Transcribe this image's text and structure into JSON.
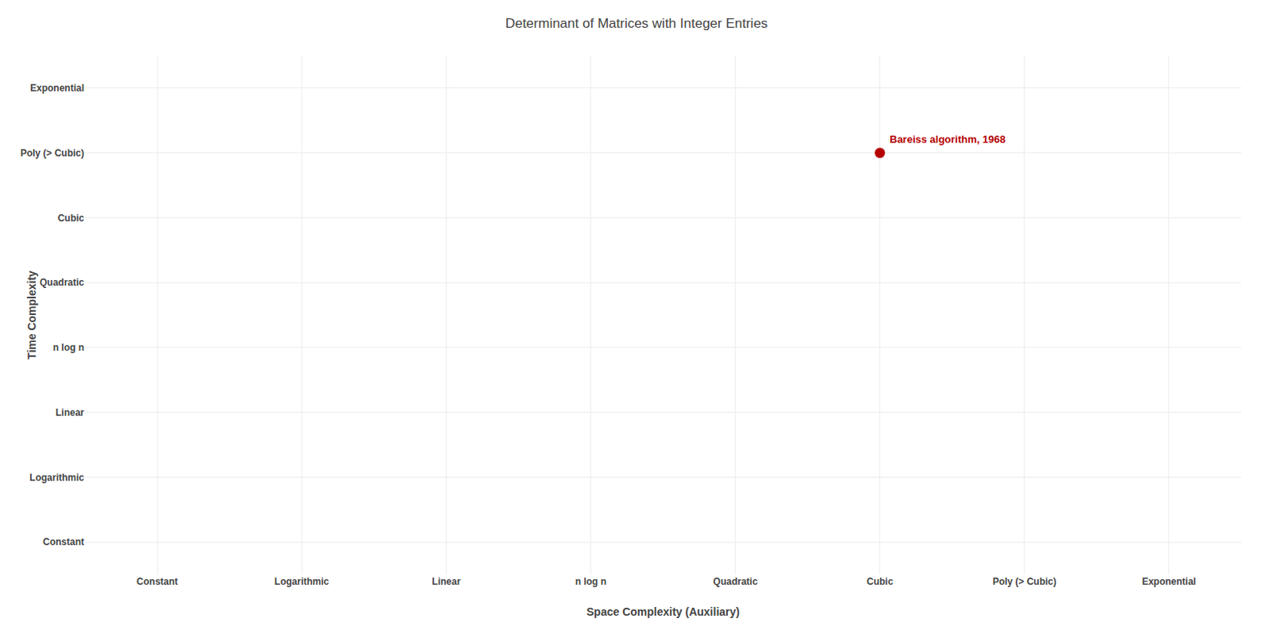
{
  "chart_data": {
    "type": "scatter",
    "title": "Determinant of Matrices with Integer Entries",
    "x_label": "Space Complexity (Auxiliary)",
    "y_label": "Time Complexity",
    "x_categories": [
      "Constant",
      "Logarithmic",
      "Linear",
      "n log n",
      "Quadratic",
      "Cubic",
      "Poly (> Cubic)",
      "Exponential"
    ],
    "y_categories": [
      "Constant",
      "Logarithmic",
      "Linear",
      "n log n",
      "Quadratic",
      "Cubic",
      "Poly (> Cubic)",
      "Exponential"
    ],
    "points": [
      {
        "label": "Bareiss algorithm, 1968",
        "x": "Cubic",
        "y": "Poly (> Cubic)",
        "color": "#b50000"
      }
    ],
    "grid": true
  }
}
